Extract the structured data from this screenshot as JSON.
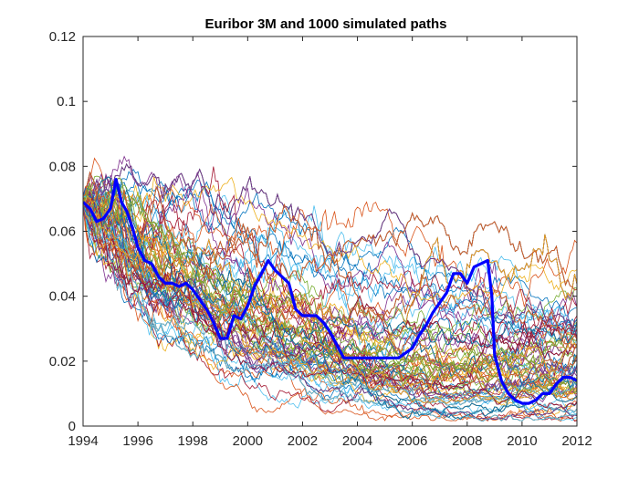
{
  "chart_data": {
    "type": "line",
    "title": "Euribor 3M and 1000 simulated paths",
    "xlabel": "",
    "ylabel": "",
    "xlim": [
      1994,
      2012
    ],
    "ylim": [
      0,
      0.12
    ],
    "x_ticks": [
      1994,
      1996,
      1998,
      2000,
      2002,
      2004,
      2006,
      2008,
      2010,
      2012
    ],
    "x_tick_labels": [
      "1994",
      "1996",
      "1998",
      "2000",
      "2002",
      "2004",
      "2006",
      "2008",
      "2010",
      "2012"
    ],
    "y_ticks": [
      0,
      0.02,
      0.04,
      0.06,
      0.08,
      0.1,
      0.12
    ],
    "y_tick_labels": [
      "0",
      "0.02",
      "0.04",
      "0.06",
      "0.08",
      "0.1",
      "0.12"
    ],
    "grid": false,
    "legend": "none",
    "series": [
      {
        "role": "historical",
        "color": "#0000ff",
        "x": [
          1994.0,
          1994.25,
          1994.5,
          1994.75,
          1995.0,
          1995.2,
          1995.4,
          1995.6,
          1995.8,
          1996.0,
          1996.25,
          1996.5,
          1996.75,
          1997.0,
          1997.25,
          1997.5,
          1997.75,
          1998.0,
          1998.25,
          1998.5,
          1998.75,
          1999.0,
          1999.25,
          1999.5,
          1999.75,
          2000.0,
          2000.25,
          2000.5,
          2000.75,
          2001.0,
          2001.25,
          2001.5,
          2001.75,
          2002.0,
          2002.25,
          2002.5,
          2002.75,
          2003.0,
          2003.25,
          2003.5,
          2003.75,
          2004.0,
          2004.5,
          2005.0,
          2005.5,
          2006.0,
          2006.25,
          2006.5,
          2006.75,
          2007.0,
          2007.25,
          2007.5,
          2007.75,
          2008.0,
          2008.25,
          2008.5,
          2008.75,
          2008.9,
          2009.0,
          2009.25,
          2009.5,
          2009.75,
          2010.0,
          2010.25,
          2010.5,
          2010.75,
          2011.0,
          2011.25,
          2011.5,
          2011.75,
          2012.0
        ],
        "y": [
          0.069,
          0.067,
          0.063,
          0.064,
          0.067,
          0.076,
          0.069,
          0.066,
          0.061,
          0.055,
          0.051,
          0.05,
          0.046,
          0.044,
          0.044,
          0.043,
          0.044,
          0.042,
          0.039,
          0.036,
          0.032,
          0.027,
          0.027,
          0.034,
          0.033,
          0.037,
          0.043,
          0.047,
          0.051,
          0.048,
          0.046,
          0.044,
          0.036,
          0.034,
          0.034,
          0.034,
          0.032,
          0.029,
          0.025,
          0.021,
          0.021,
          0.021,
          0.021,
          0.021,
          0.021,
          0.024,
          0.028,
          0.031,
          0.035,
          0.038,
          0.041,
          0.047,
          0.047,
          0.044,
          0.049,
          0.05,
          0.051,
          0.04,
          0.022,
          0.014,
          0.01,
          0.008,
          0.007,
          0.007,
          0.008,
          0.01,
          0.01,
          0.013,
          0.015,
          0.015,
          0.014
        ]
      }
    ],
    "simulated_paths": {
      "count": 1000,
      "start": {
        "x": 1994,
        "y": 0.069
      },
      "colors": [
        "#0072bd",
        "#d95319",
        "#edb120",
        "#7e2f8e",
        "#77ac30",
        "#4dbeee",
        "#a2142f"
      ]
    }
  }
}
